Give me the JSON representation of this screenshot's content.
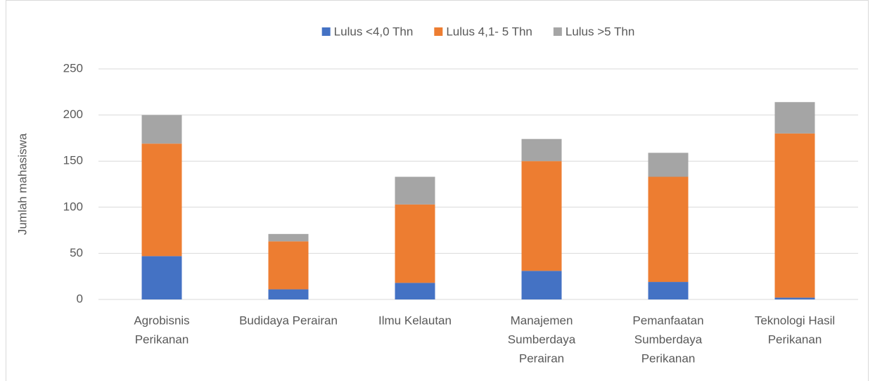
{
  "chart_data": {
    "type": "stacked_bar",
    "y_label": "Jumlah mahasiswa",
    "categories": [
      [
        "Agrobisnis",
        "Perikanan"
      ],
      [
        "Budidaya Perairan"
      ],
      [
        "Ilmu Kelautan"
      ],
      [
        "Manajemen",
        "Sumberdaya",
        "Perairan"
      ],
      [
        "Pemanfaatan",
        "Sumberdaya",
        "Perikanan"
      ],
      [
        "Teknologi Hasil",
        "Perikanan"
      ]
    ],
    "series": [
      {
        "name": "Lulus <4,0 Thn",
        "color": "#4472c4",
        "values": [
          47,
          11,
          18,
          31,
          19,
          2
        ]
      },
      {
        "name": "Lulus 4,1- 5 Thn",
        "color": "#ed7d31",
        "values": [
          122,
          52,
          85,
          119,
          114,
          178
        ]
      },
      {
        "name": "Lulus >5 Thn",
        "color": "#a5a5a5",
        "values": [
          31,
          8,
          30,
          24,
          26,
          34
        ]
      }
    ],
    "ylim": [
      0,
      250
    ],
    "yticks": [
      0,
      50,
      100,
      150,
      200,
      250
    ],
    "grid": true,
    "legend": "top"
  }
}
